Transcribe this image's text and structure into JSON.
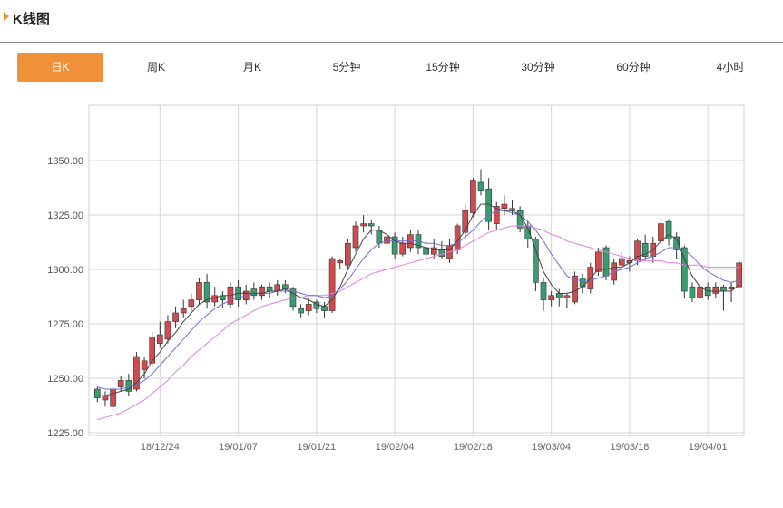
{
  "header": {
    "title": "K线图"
  },
  "tabs": [
    {
      "label": "日K",
      "active": true
    },
    {
      "label": "周K",
      "active": false
    },
    {
      "label": "月K",
      "active": false
    },
    {
      "label": "5分钟",
      "active": false
    },
    {
      "label": "15分钟",
      "active": false
    },
    {
      "label": "30分钟",
      "active": false
    },
    {
      "label": "60分钟",
      "active": false
    },
    {
      "label": "4小时",
      "active": false
    }
  ],
  "colors": {
    "accent": "#f0913a",
    "up": "#cf4b4f",
    "down": "#3a9c70",
    "ma_fast": "#444444",
    "ma_mid": "#6d6fd0",
    "ma_slow": "#e27de6"
  },
  "chart_data": {
    "type": "candlestick",
    "ylim": [
      1225,
      1350
    ],
    "yticks": [
      "1350.00",
      "1325.00",
      "1300.00",
      "1275.00",
      "1250.00",
      "1225.00"
    ],
    "xtick_labels": [
      "18/12/24",
      "19/01/07",
      "19/01/21",
      "19/02/04",
      "19/02/18",
      "19/03/04",
      "19/03/18",
      "19/04/01"
    ],
    "xtick_index": [
      8,
      18,
      28,
      38,
      48,
      58,
      68,
      78
    ],
    "grid": true,
    "candles": [
      [
        1245,
        1241,
        1246,
        1239
      ],
      [
        1240,
        1242,
        1244,
        1237
      ],
      [
        1237,
        1245,
        1246,
        1234
      ],
      [
        1246,
        1249,
        1251,
        1244
      ],
      [
        1249,
        1244,
        1252,
        1242
      ],
      [
        1245,
        1260,
        1262,
        1244
      ],
      [
        1254,
        1258,
        1260,
        1250
      ],
      [
        1257,
        1269,
        1271,
        1255
      ],
      [
        1266,
        1270,
        1276,
        1264
      ],
      [
        1268,
        1276,
        1279,
        1266
      ],
      [
        1276,
        1280,
        1283,
        1273
      ],
      [
        1280,
        1282,
        1286,
        1278
      ],
      [
        1283,
        1286,
        1289,
        1281
      ],
      [
        1286,
        1294,
        1296,
        1284
      ],
      [
        1294,
        1285,
        1298,
        1282
      ],
      [
        1285,
        1288,
        1292,
        1283
      ],
      [
        1288,
        1286,
        1290,
        1282
      ],
      [
        1284,
        1292,
        1294,
        1282
      ],
      [
        1292,
        1286,
        1295,
        1283
      ],
      [
        1286,
        1290,
        1293,
        1284
      ],
      [
        1291,
        1288,
        1294,
        1286
      ],
      [
        1288,
        1292,
        1293,
        1286
      ],
      [
        1292,
        1290,
        1294,
        1287
      ],
      [
        1290,
        1293,
        1295,
        1288
      ],
      [
        1293,
        1291,
        1295,
        1289
      ],
      [
        1291,
        1283,
        1292,
        1281
      ],
      [
        1282,
        1280,
        1284,
        1278
      ],
      [
        1281,
        1284,
        1287,
        1279
      ],
      [
        1285,
        1282,
        1286,
        1280
      ],
      [
        1283,
        1281,
        1285,
        1278
      ],
      [
        1281,
        1305,
        1306,
        1280
      ],
      [
        1303,
        1304,
        1305,
        1300
      ],
      [
        1302,
        1312,
        1314,
        1300
      ],
      [
        1310,
        1320,
        1322,
        1308
      ],
      [
        1320,
        1321,
        1325,
        1317
      ],
      [
        1321,
        1320,
        1323,
        1316
      ],
      [
        1318,
        1312,
        1320,
        1310
      ],
      [
        1312,
        1315,
        1318,
        1310
      ],
      [
        1315,
        1307,
        1317,
        1305
      ],
      [
        1307,
        1312,
        1315,
        1306
      ],
      [
        1310,
        1316,
        1318,
        1308
      ],
      [
        1316,
        1310,
        1318,
        1307
      ],
      [
        1310,
        1307,
        1313,
        1303
      ],
      [
        1307,
        1310,
        1314,
        1305
      ],
      [
        1309,
        1306,
        1313,
        1305
      ],
      [
        1305,
        1311,
        1314,
        1303
      ],
      [
        1309,
        1320,
        1321,
        1307
      ],
      [
        1317,
        1327,
        1330,
        1314
      ],
      [
        1326,
        1341,
        1342,
        1324
      ],
      [
        1340,
        1336,
        1346,
        1334
      ],
      [
        1337,
        1322,
        1342,
        1318
      ],
      [
        1321,
        1329,
        1331,
        1318
      ],
      [
        1328,
        1330,
        1334,
        1325
      ],
      [
        1328,
        1327,
        1332,
        1325
      ],
      [
        1327,
        1319,
        1329,
        1317
      ],
      [
        1320,
        1314,
        1322,
        1310
      ],
      [
        1314,
        1294,
        1315,
        1290
      ],
      [
        1294,
        1286,
        1296,
        1281
      ],
      [
        1286,
        1288,
        1290,
        1283
      ],
      [
        1289,
        1287,
        1291,
        1283
      ],
      [
        1287,
        1288,
        1289,
        1282
      ],
      [
        1285,
        1297,
        1299,
        1284
      ],
      [
        1296,
        1292,
        1298,
        1289
      ],
      [
        1291,
        1301,
        1303,
        1289
      ],
      [
        1299,
        1308,
        1310,
        1297
      ],
      [
        1310,
        1297,
        1311,
        1295
      ],
      [
        1295,
        1303,
        1305,
        1293
      ],
      [
        1302,
        1305,
        1308,
        1300
      ],
      [
        1303,
        1304,
        1306,
        1299
      ],
      [
        1304,
        1313,
        1314,
        1302
      ],
      [
        1312,
        1306,
        1316,
        1304
      ],
      [
        1306,
        1312,
        1315,
        1303
      ],
      [
        1313,
        1321,
        1324,
        1311
      ],
      [
        1322,
        1314,
        1323,
        1311
      ],
      [
        1315,
        1309,
        1317,
        1305
      ],
      [
        1310,
        1290,
        1311,
        1287
      ],
      [
        1292,
        1287,
        1294,
        1285
      ],
      [
        1287,
        1292,
        1294,
        1285
      ],
      [
        1292,
        1288,
        1294,
        1286
      ],
      [
        1289,
        1292,
        1294,
        1287
      ],
      [
        1292,
        1290,
        1293,
        1281
      ],
      [
        1291,
        1292,
        1294,
        1285
      ],
      [
        1292,
        1303,
        1304,
        1291
      ]
    ],
    "ma_fast": [
      1242,
      1242,
      1243,
      1244,
      1245,
      1248,
      1252,
      1258,
      1262,
      1267,
      1271,
      1276,
      1280,
      1284,
      1286,
      1287,
      1288,
      1288,
      1289,
      1289,
      1289,
      1289,
      1290,
      1290,
      1291,
      1289,
      1287,
      1286,
      1284,
      1283,
      1286,
      1292,
      1300,
      1307,
      1314,
      1318,
      1318,
      1316,
      1313,
      1312,
      1312,
      1311,
      1310,
      1309,
      1309,
      1309,
      1313,
      1318,
      1325,
      1330,
      1330,
      1328,
      1327,
      1327,
      1325,
      1319,
      1309,
      1299,
      1293,
      1289,
      1289,
      1290,
      1292,
      1296,
      1300,
      1300,
      1301,
      1301,
      1303,
      1306,
      1307,
      1309,
      1313,
      1316,
      1314,
      1305,
      1297,
      1292,
      1290,
      1290,
      1290,
      1290,
      1293
    ],
    "ma_mid": [
      1246,
      1245,
      1245,
      1245,
      1246,
      1247,
      1249,
      1252,
      1256,
      1260,
      1264,
      1268,
      1272,
      1276,
      1279,
      1282,
      1284,
      1286,
      1287,
      1288,
      1289,
      1289,
      1289,
      1290,
      1290,
      1290,
      1289,
      1288,
      1288,
      1287,
      1288,
      1291,
      1295,
      1300,
      1305,
      1309,
      1312,
      1313,
      1313,
      1313,
      1313,
      1313,
      1312,
      1312,
      1311,
      1311,
      1312,
      1315,
      1318,
      1322,
      1325,
      1327,
      1327,
      1326,
      1325,
      1322,
      1318,
      1313,
      1307,
      1302,
      1297,
      1295,
      1295,
      1295,
      1296,
      1297,
      1299,
      1300,
      1301,
      1303,
      1305,
      1306,
      1308,
      1310,
      1310,
      1309,
      1306,
      1302,
      1299,
      1297,
      1295,
      1294,
      1295
    ],
    "ma_slow": [
      1231,
      1232,
      1233,
      1234,
      1236,
      1238,
      1240,
      1243,
      1246,
      1249,
      1253,
      1256,
      1260,
      1263,
      1266,
      1269,
      1272,
      1275,
      1277,
      1279,
      1281,
      1283,
      1284,
      1285,
      1286,
      1287,
      1287,
      1288,
      1288,
      1288,
      1289,
      1290,
      1292,
      1294,
      1296,
      1298,
      1299,
      1300,
      1301,
      1302,
      1303,
      1304,
      1305,
      1306,
      1307,
      1308,
      1309,
      1311,
      1313,
      1315,
      1317,
      1318,
      1319,
      1320,
      1320,
      1320,
      1319,
      1318,
      1316,
      1315,
      1313,
      1312,
      1311,
      1310,
      1309,
      1308,
      1307,
      1306,
      1305,
      1304,
      1304,
      1304,
      1304,
      1303,
      1303,
      1302,
      1302,
      1302,
      1301,
      1301,
      1301,
      1301,
      1301
    ]
  }
}
